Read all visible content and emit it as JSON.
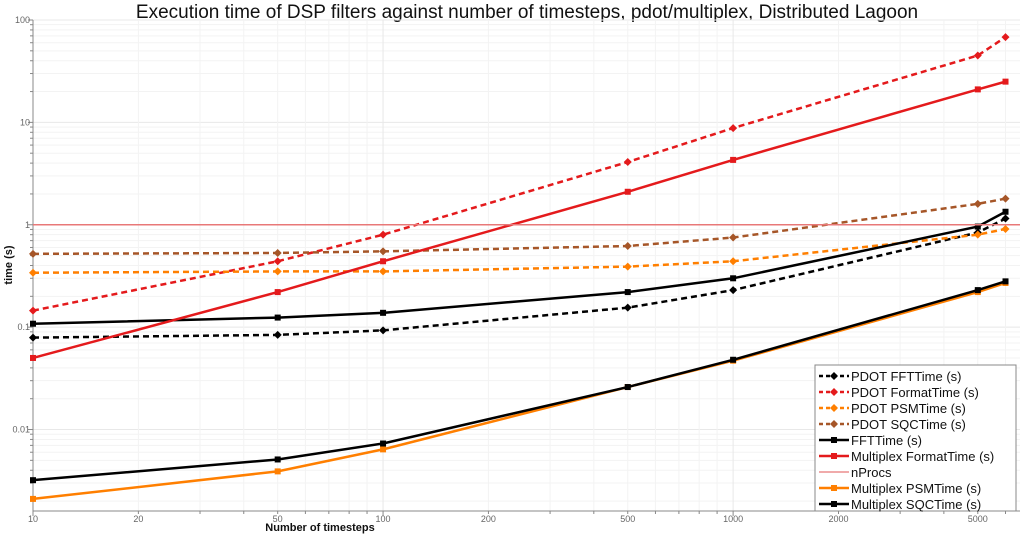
{
  "chart_data": {
    "type": "line",
    "title": "Execution time of DSP filters against number of timesteps, pdot/multiplex, Distributed Lagoon",
    "xlabel": "Number of timesteps",
    "ylabel": "time (s)",
    "xscale": "log",
    "yscale": "log",
    "xlim": [
      10,
      6600
    ],
    "ylim": [
      0.0016,
      100
    ],
    "grid": true,
    "legend_position": "bottom-right",
    "x_ticks": [
      "10",
      "20",
      "50",
      "100",
      "200",
      "500",
      "1000",
      "2000",
      "5000"
    ],
    "y_ticks": [
      "0.01",
      "0.1",
      "1",
      "10",
      "100"
    ],
    "x": [
      10,
      50,
      100,
      500,
      1000,
      5000,
      6000
    ],
    "series": [
      {
        "name": "PDOT FFTTime (s)",
        "color": "#000000",
        "dash": true,
        "marker": "diamond",
        "values": [
          0.079,
          0.084,
          0.093,
          0.155,
          0.23,
          0.84,
          1.15
        ]
      },
      {
        "name": "PDOT FormatTime (s)",
        "color": "#e41a1c",
        "dash": true,
        "marker": "diamond",
        "values": [
          0.145,
          0.44,
          0.8,
          4.1,
          8.8,
          45,
          68
        ]
      },
      {
        "name": "PDOT PSMTime (s)",
        "color": "#ff7f00",
        "dash": true,
        "marker": "diamond",
        "values": [
          0.34,
          0.35,
          0.35,
          0.39,
          0.44,
          0.8,
          0.91
        ]
      },
      {
        "name": "PDOT SQCTime (s)",
        "color": "#a65628",
        "dash": true,
        "marker": "diamond",
        "values": [
          0.52,
          0.53,
          0.55,
          0.62,
          0.75,
          1.6,
          1.8
        ]
      },
      {
        "name": "FFTTime (s)",
        "color": "#000000",
        "dash": false,
        "marker": "square",
        "values": [
          0.108,
          0.124,
          0.138,
          0.22,
          0.3,
          0.96,
          1.34
        ]
      },
      {
        "name": "Multiplex FormatTime (s)",
        "color": "#e41a1c",
        "dash": false,
        "marker": "square",
        "values": [
          0.05,
          0.22,
          0.44,
          2.1,
          4.3,
          21,
          25
        ]
      },
      {
        "name": "nProcs",
        "color": "#e87878",
        "dash": false,
        "marker": "none",
        "values": [
          1,
          1,
          1,
          1,
          1,
          1,
          1
        ]
      },
      {
        "name": "Multiplex PSMTime (s)",
        "color": "#ff7f00",
        "dash": false,
        "marker": "square",
        "values": [
          0.0021,
          0.0039,
          0.0064,
          0.026,
          0.047,
          0.22,
          0.27
        ]
      },
      {
        "name": "Multiplex SQCTime (s)",
        "color": "#000000",
        "dash": false,
        "marker": "square",
        "values": [
          0.0032,
          0.0051,
          0.0073,
          0.026,
          0.048,
          0.23,
          0.28
        ]
      }
    ]
  }
}
